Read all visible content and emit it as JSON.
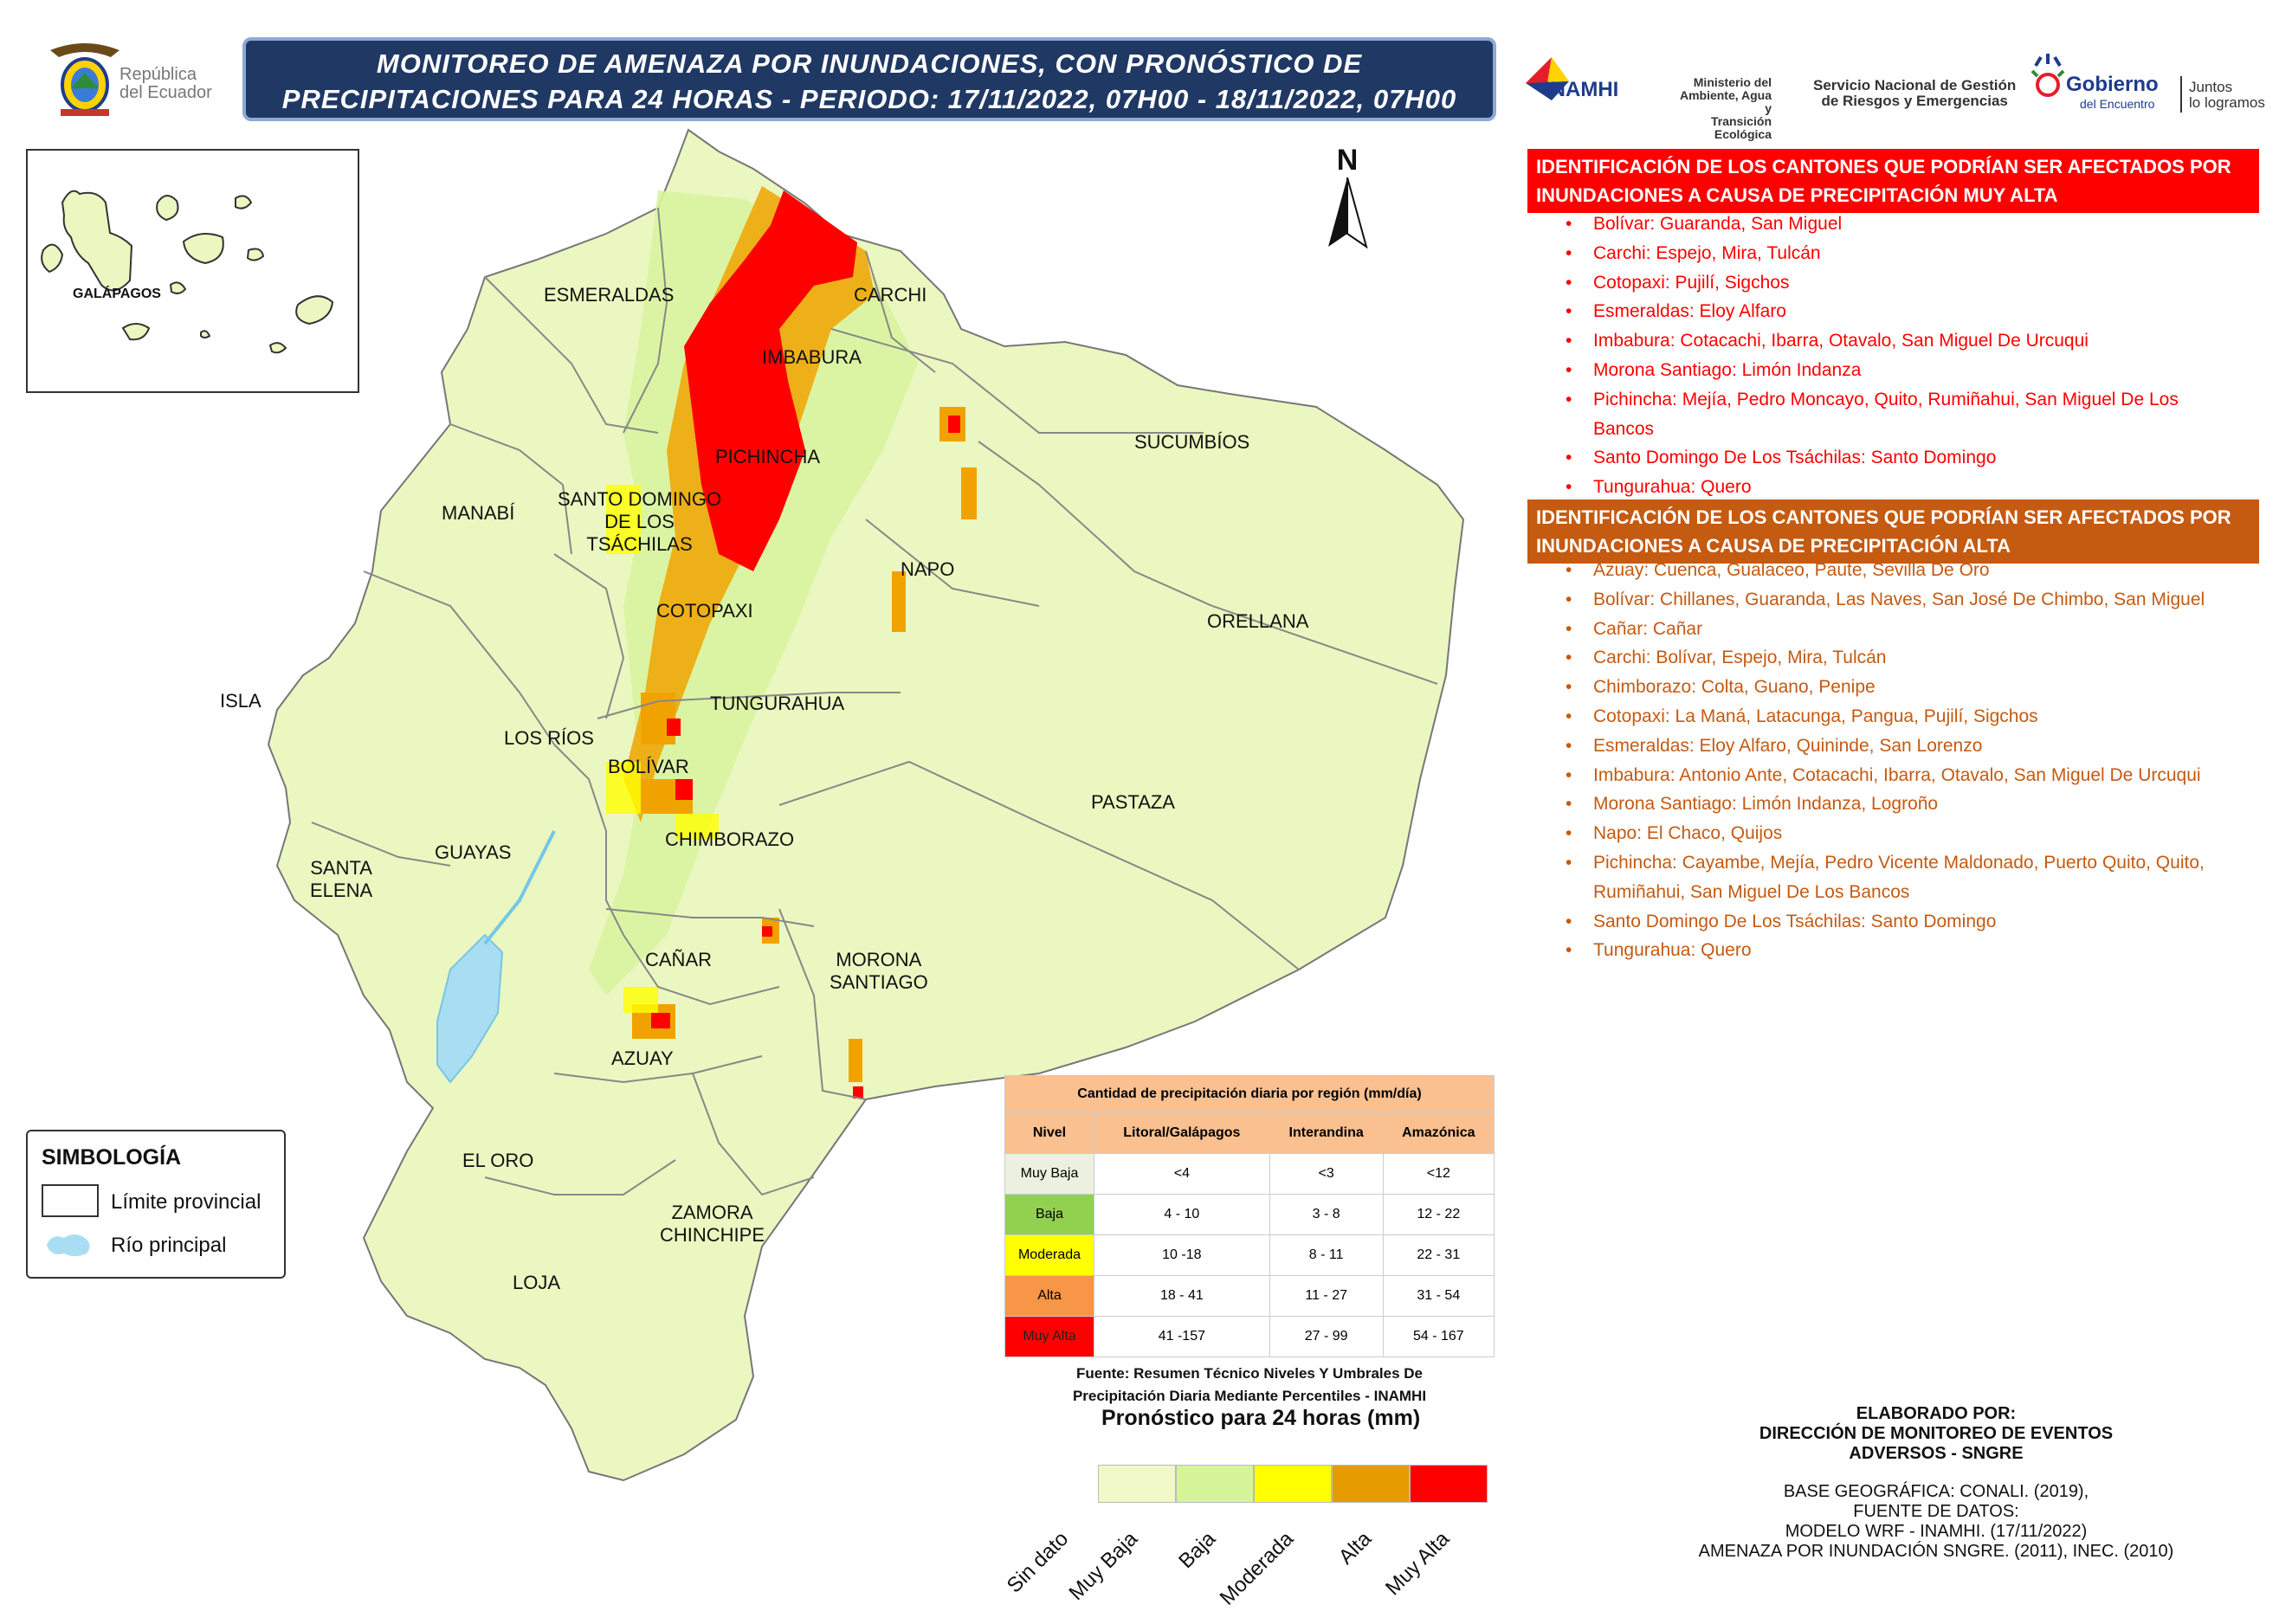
{
  "header": {
    "title_line1": "MONITOREO DE AMENAZA POR INUNDACIONES, CON PRONÓSTICO DE",
    "title_line2": "PRECIPITACIONES  PARA 24  HORAS - PERIODO: 17/11/2022, 07H00 - 18/11/2022, 07H00",
    "country_line1": "República",
    "country_line2": "del Ecuador",
    "inamhi": "INAMHI",
    "ministerio_line1": "Ministerio del",
    "ministerio_line2": "Ambiente, Agua y",
    "ministerio_line3": "Transición Ecológica",
    "sngre_line1": "Servicio Nacional de Gestión",
    "sngre_line2": "de Riesgos y Emergencias",
    "gobierno": "Gobierno",
    "gobierno_sub": "del Encuentro",
    "juntos_line1": "Juntos",
    "juntos_line2": "lo logramos"
  },
  "inset": {
    "label": "GALÁPAGOS"
  },
  "north": "N",
  "map_labels": {
    "esmeraldas": "ESMERALDAS",
    "carchi": "CARCHI",
    "imbabura": "IMBABURA",
    "sucumbios": "SUCUMBÍOS",
    "pichincha": "PICHINCHA",
    "manabi": "MANABÍ",
    "sto_domingo_1": "SANTO DOMINGO",
    "sto_domingo_2": "DE LOS",
    "sto_domingo_3": "TSÁCHILAS",
    "napo": "NAPO",
    "cotopaxi": "COTOPAXI",
    "orellana": "ORELLANA",
    "isla": "ISLA",
    "tungurahua": "TUNGURAHUA",
    "los_rios": "LOS RÍOS",
    "bolivar": "BOLÍVAR",
    "pastaza": "PASTAZA",
    "santa_elena_1": "SANTA",
    "santa_elena_2": "ELENA",
    "guayas": "GUAYAS",
    "chimborazo": "CHIMBORAZO",
    "canar": "CAÑAR",
    "morona_1": "MORONA",
    "morona_2": "SANTIAGO",
    "azuay": "AZUAY",
    "el_oro": "EL ORO",
    "zamora_1": "ZAMORA",
    "zamora_2": "CHINCHIPE",
    "loja": "LOJA"
  },
  "symbology": {
    "title": "SIMBOLOGÍA",
    "limit": "Límite provincial",
    "river": "Río principal"
  },
  "muy_alta": {
    "heading_line1": "IDENTIFICACIÓN DE LOS CANTONES QUE PODRÍAN SER AFECTADOS POR",
    "heading_line2": "INUNDACIONES A CAUSA DE  PRECIPITACIÓN MUY ALTA",
    "color": "#ff0000",
    "items": [
      "Bolívar: Guaranda, San Miguel",
      "Carchi: Espejo, Mira, Tulcán",
      "Cotopaxi: Pujilí, Sigchos",
      "Esmeraldas: Eloy Alfaro",
      "Imbabura: Cotacachi, Ibarra, Otavalo, San Miguel De Urcuqui",
      "Morona Santiago: Limón Indanza",
      "Pichincha: Mejía, Pedro Moncayo, Quito, Rumiñahui, San Miguel De Los Bancos",
      "Santo Domingo De Los Tsáchilas: Santo Domingo",
      "Tungurahua: Quero"
    ]
  },
  "alta": {
    "heading_line1": "IDENTIFICACIÓN DE LOS CANTONES QUE PODRÍAN SER AFECTADOS POR",
    "heading_line2": "INUNDACIONES A CAUSA DE  PRECIPITACIÓN  ALTA",
    "color": "#c55a11",
    "items": [
      "Azuay: Cuenca, Gualaceo, Paute, Sevilla De Oro",
      "Bolívar: Chillanes, Guaranda, Las Naves, San José De Chimbo, San Miguel",
      "Cañar: Cañar",
      "Carchi: Bolívar, Espejo, Mira, Tulcán",
      "Chimborazo: Colta, Guano, Penipe",
      "Cotopaxi: La Maná, Latacunga, Pangua, Pujilí, Sigchos",
      "Esmeraldas: Eloy Alfaro, Quininde, San Lorenzo",
      "Imbabura: Antonio Ante, Cotacachi, Ibarra, Otavalo, San Miguel De Urcuqui",
      "Morona Santiago: Limón Indanza, Logroño",
      "Napo: El Chaco, Quijos",
      "Pichincha: Cayambe, Mejía, Pedro Vicente Maldonado, Puerto Quito, Quito, Rumiñahui, San Miguel De Los Bancos",
      "Santo Domingo De Los Tsáchilas: Santo Domingo",
      "Tungurahua: Quero"
    ]
  },
  "precip_table": {
    "title": "Cantidad de precipitación diaria por región (mm/día)",
    "headers": [
      "Nivel",
      "Litoral/Galápagos",
      "Interandina",
      "Amazónica"
    ],
    "rows": [
      {
        "nivel": "Muy Baja",
        "color": "#ebf1de",
        "litoral": "<4",
        "interandina": "<3",
        "amazonica": "<12"
      },
      {
        "nivel": "Baja",
        "color": "#92d050",
        "litoral": "4 - 10",
        "interandina": "3 - 8",
        "amazonica": "12 - 22"
      },
      {
        "nivel": "Moderada",
        "color": "#ffff00",
        "litoral": "10 -18",
        "interandina": "8 - 11",
        "amazonica": "22 - 31"
      },
      {
        "nivel": "Alta",
        "color": "#f79646",
        "litoral": "18 - 41",
        "interandina": "11 - 27",
        "amazonica": "31 - 54"
      },
      {
        "nivel": "Muy Alta",
        "color": "#ff0000",
        "litoral": "41 -157",
        "interandina": "27 - 99",
        "amazonica": "54 - 167"
      }
    ],
    "source_line1": "Fuente: Resumen Técnico Niveles Y Umbrales De",
    "source_line2": "Precipitación Diaria Mediante Percentiles - INAMHI"
  },
  "legend": {
    "title": "Pronóstico para 24 horas (mm)",
    "labels": [
      "Sin dato",
      "Muy Baja",
      "Baja",
      "Moderada",
      "Alta",
      "Muy Alta"
    ],
    "colors": [
      "#f2f9c8",
      "#d6f59a",
      "#ffff00",
      "#e69b00",
      "#ff0000"
    ]
  },
  "credits": {
    "line1": "ELABORADO POR:",
    "line2": "DIRECCIÓN DE MONITOREO DE EVENTOS",
    "line3": "ADVERSOS - SNGRE",
    "line4": "BASE GEOGRÁFICA: CONALI. (2019),",
    "line5": "FUENTE DE DATOS:",
    "line6": "MODELO WRF - INAMHI. (17/11/2022)",
    "line7": "AMENAZA POR INUNDACIÓN SNGRE. (2011), INEC. (2010)"
  }
}
